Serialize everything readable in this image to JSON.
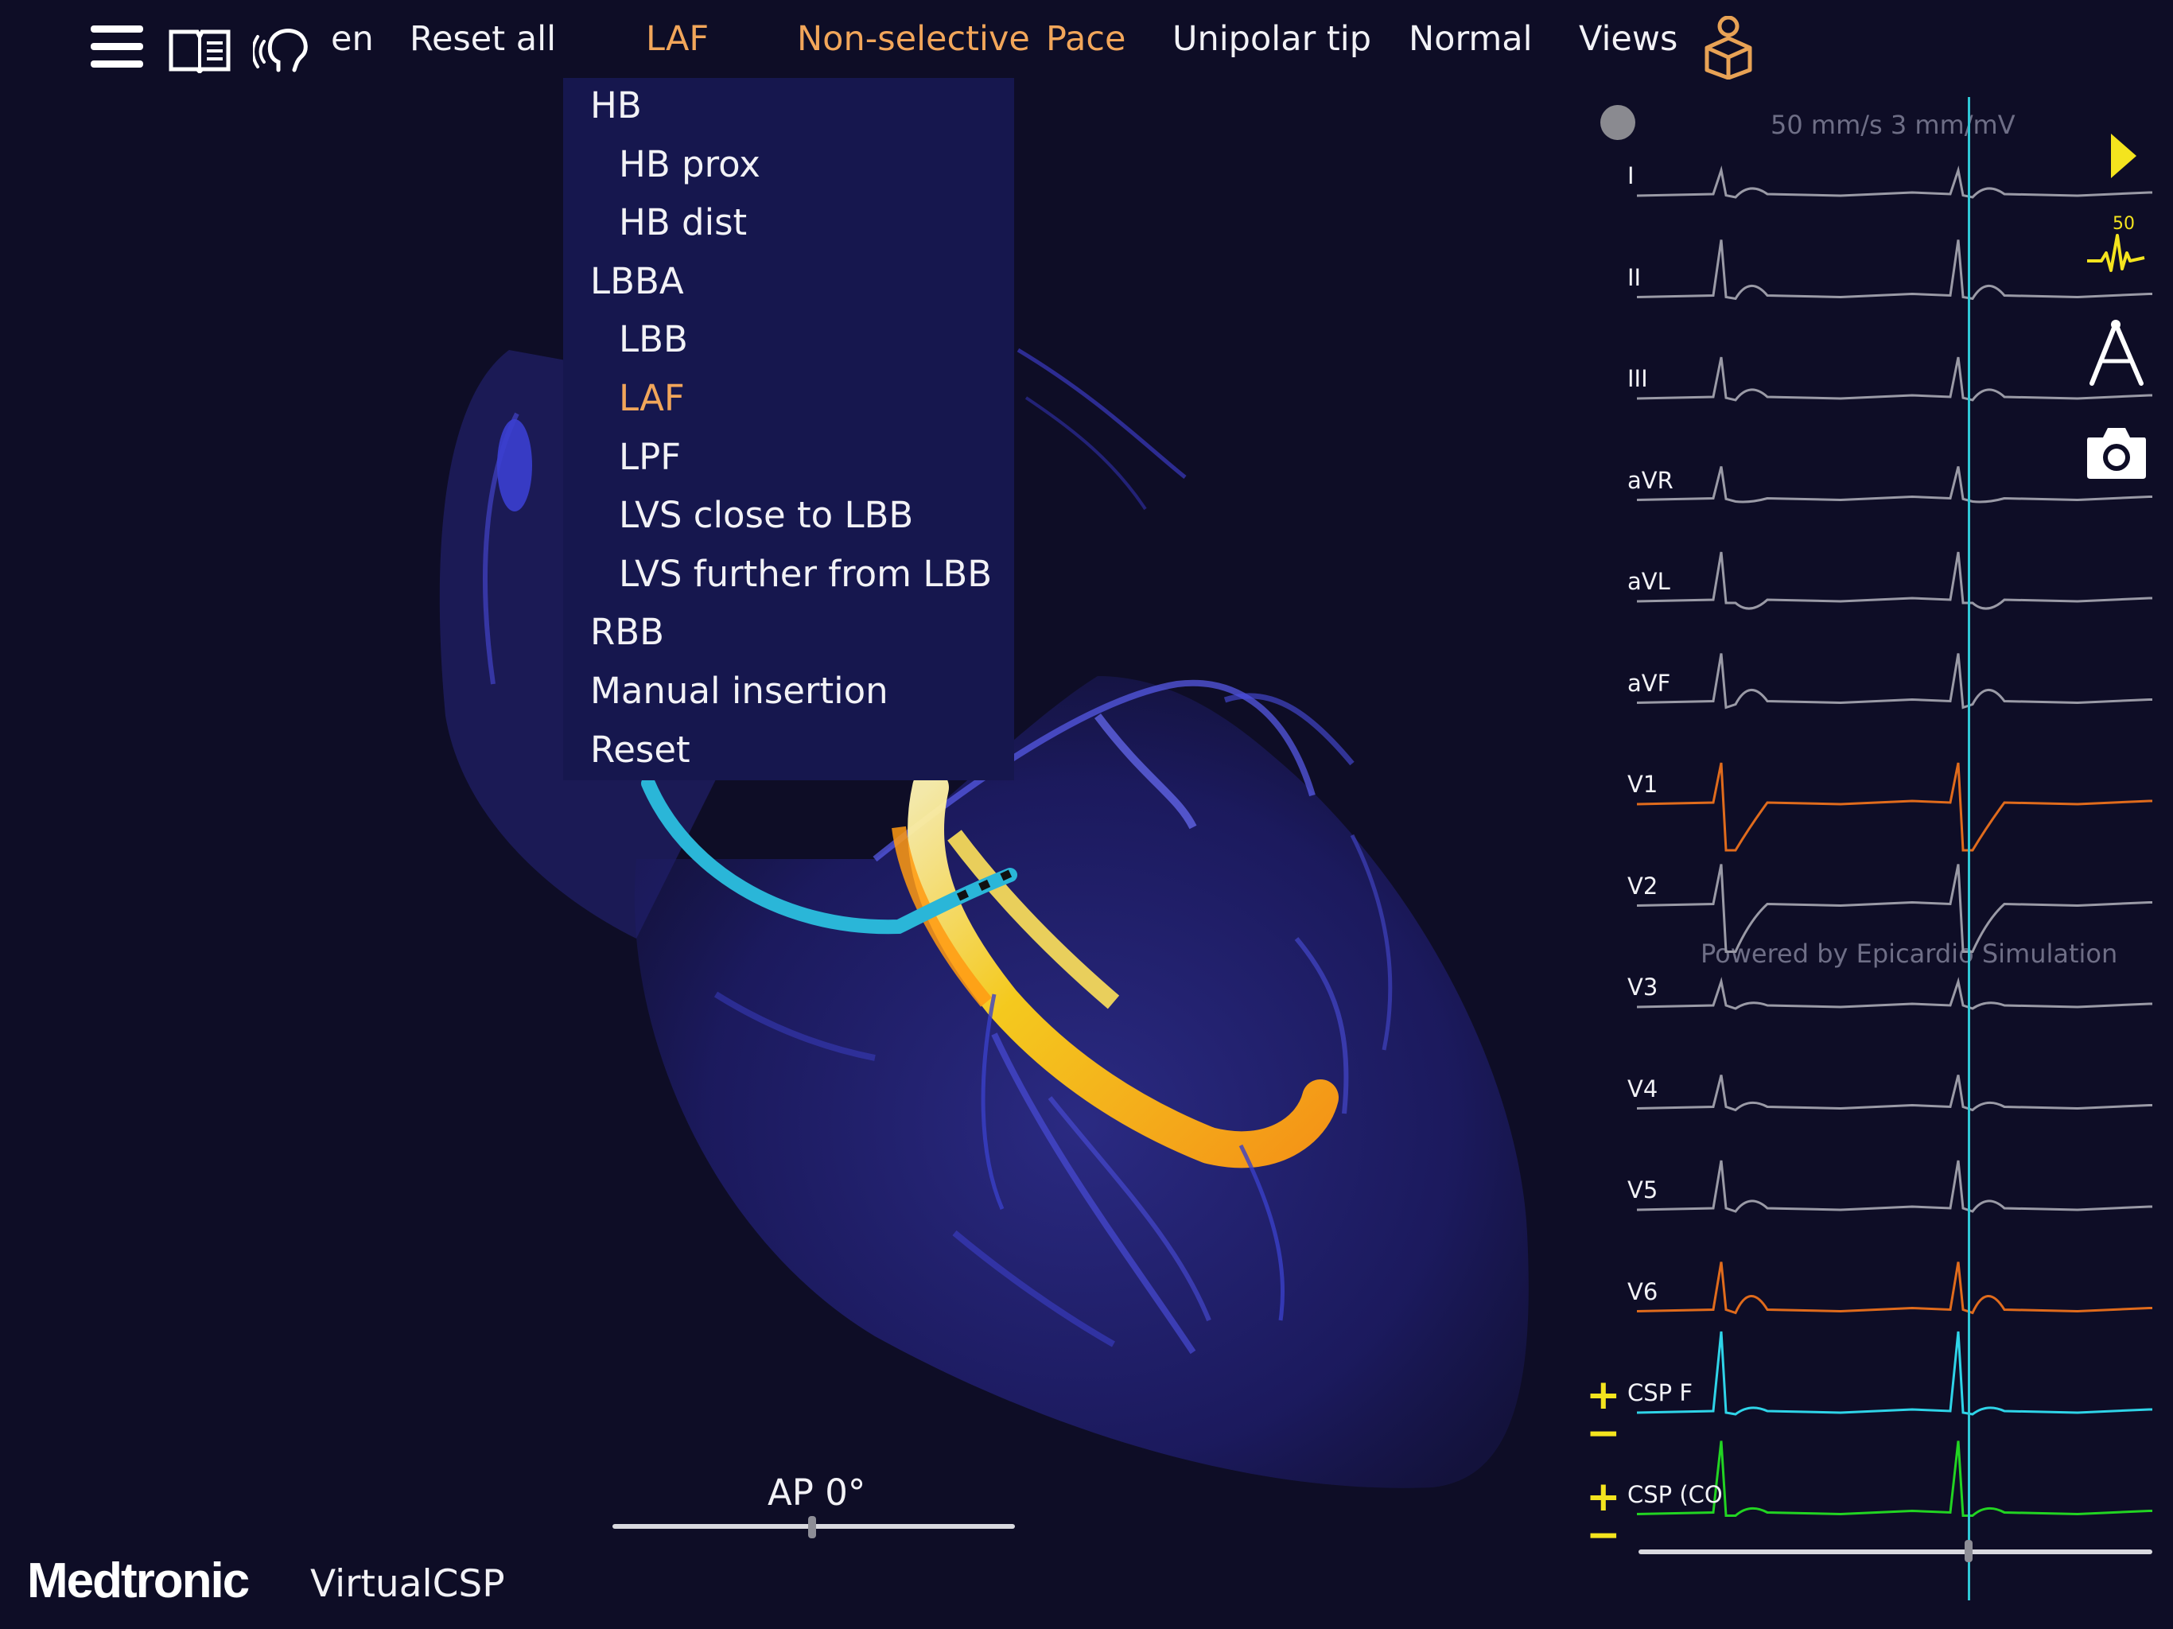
{
  "topbar": {
    "language": "en",
    "reset_all": "Reset all",
    "location": "LAF",
    "capture": "Non-selective",
    "mode": "Pace",
    "configuration": "Unipolar tip",
    "conduction": "Normal",
    "views": "Views"
  },
  "dropdown": {
    "items": [
      {
        "label": "HB",
        "level": 0
      },
      {
        "label": "HB prox",
        "level": 1
      },
      {
        "label": "HB dist",
        "level": 1
      },
      {
        "label": "LBBA",
        "level": 0
      },
      {
        "label": "LBB",
        "level": 1
      },
      {
        "label": "LAF",
        "level": 1,
        "selected": true
      },
      {
        "label": "LPF",
        "level": 1
      },
      {
        "label": "LVS close to LBB",
        "level": 1
      },
      {
        "label": "LVS further from LBB",
        "level": 1
      },
      {
        "label": "RBB",
        "level": 0
      },
      {
        "label": "Manual insertion",
        "level": 0
      },
      {
        "label": "Reset",
        "level": 0
      }
    ]
  },
  "ecg": {
    "settings": "50 mm/s  3 mm/mV",
    "watermark": "Powered by Epicardio Simulation",
    "speed_badge": "50",
    "leads": [
      {
        "label": "I",
        "color": "#9a9aa6"
      },
      {
        "label": "II",
        "color": "#9a9aa6"
      },
      {
        "label": "III",
        "color": "#9a9aa6"
      },
      {
        "label": "aVR",
        "color": "#9a9aa6"
      },
      {
        "label": "aVL",
        "color": "#9a9aa6"
      },
      {
        "label": "aVF",
        "color": "#9a9aa6"
      },
      {
        "label": "V1",
        "color": "#e06b1c"
      },
      {
        "label": "V2",
        "color": "#9a9aa6"
      },
      {
        "label": "V3",
        "color": "#9a9aa6"
      },
      {
        "label": "V4",
        "color": "#9a9aa6"
      },
      {
        "label": "V5",
        "color": "#9a9aa6"
      },
      {
        "label": "V6",
        "color": "#e06b1c"
      },
      {
        "label": "CSP F",
        "color": "#2fd4e8"
      },
      {
        "label": "CSP (CO",
        "color": "#22d422"
      }
    ],
    "plus": "+",
    "minus": "−"
  },
  "view": {
    "label": "AP 0°"
  },
  "brand": {
    "name": "Medtronic",
    "app": "VirtualCSP"
  },
  "colors": {
    "background": "#0e0d26",
    "accent": "#f2a65a",
    "menu_bg": "#16174e",
    "cursor_line": "#2fc7d6",
    "yellow": "#f4e41e"
  }
}
